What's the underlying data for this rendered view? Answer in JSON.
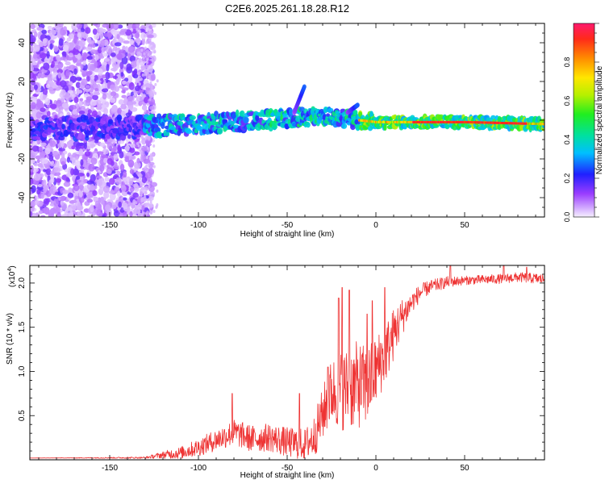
{
  "title": "C2E6.2025.261.18.28.R12",
  "chart_data": [
    {
      "type": "heatmap",
      "xlabel": "Height of straight line (km)",
      "ylabel": "Frequency (Hz)",
      "xlim": [
        -195,
        95
      ],
      "ylim": [
        -50,
        50
      ],
      "xticks": [
        -150,
        -100,
        -50,
        0,
        50
      ],
      "yticks": [
        -40,
        -20,
        0,
        20,
        40
      ],
      "ridge": [
        [
          -195,
          -4
        ],
        [
          -150,
          -4
        ],
        [
          -100,
          -2
        ],
        [
          -50,
          1
        ],
        [
          -30,
          2
        ],
        [
          -10,
          0
        ],
        [
          0,
          -1
        ],
        [
          50,
          -1
        ],
        [
          95,
          -2
        ]
      ],
      "branches": [
        [
          -40,
          18
        ],
        [
          -10,
          8
        ]
      ],
      "colorbar": {
        "label": "Normalized spectral amplitude",
        "range": [
          0,
          1
        ],
        "ticks": [
          "0.0",
          "0.2",
          "0.4",
          "0.6",
          "0.8"
        ],
        "tick_values": [
          0.0,
          0.2,
          0.4,
          0.6,
          0.8
        ]
      }
    },
    {
      "type": "line",
      "xlabel": "Height of straight line (km)",
      "ylabel": "SNR (10 * v/v)",
      "scale_label": "(x10",
      "scale_exp": "4",
      "scale_close": ")",
      "xlim": [
        -195,
        95
      ],
      "ylim": [
        0,
        2.2
      ],
      "xticks": [
        -150,
        -100,
        -50,
        0,
        50
      ],
      "yticks": [
        "0.5",
        "1.0",
        "1.5",
        "2.0"
      ],
      "ytick_values": [
        0.5,
        1.0,
        1.5,
        2.0
      ],
      "series": [
        {
          "name": "SNR",
          "color": "#ee3333",
          "envelope": [
            [
              -195,
              0.02
            ],
            [
              -130,
              0.03
            ],
            [
              -120,
              0.08
            ],
            [
              -110,
              0.12
            ],
            [
              -100,
              0.2
            ],
            [
              -90,
              0.3
            ],
            [
              -80,
              0.4
            ],
            [
              -70,
              0.33
            ],
            [
              -60,
              0.35
            ],
            [
              -50,
              0.3
            ],
            [
              -40,
              0.28
            ],
            [
              -35,
              0.4
            ],
            [
              -30,
              0.7
            ],
            [
              -25,
              1.0
            ],
            [
              -20,
              1.05
            ],
            [
              -15,
              1.1
            ],
            [
              -10,
              1.15
            ],
            [
              -5,
              1.1
            ],
            [
              0,
              1.25
            ],
            [
              5,
              1.4
            ],
            [
              10,
              1.6
            ],
            [
              15,
              1.75
            ],
            [
              20,
              1.85
            ],
            [
              25,
              1.95
            ],
            [
              30,
              2.0
            ],
            [
              40,
              2.05
            ],
            [
              50,
              2.06
            ],
            [
              60,
              2.07
            ],
            [
              70,
              2.08
            ],
            [
              80,
              2.1
            ],
            [
              95,
              2.08
            ]
          ],
          "noise": [
            [
              -195,
              0.0
            ],
            [
              -130,
              0.01
            ],
            [
              -120,
              0.04
            ],
            [
              -100,
              0.1
            ],
            [
              -80,
              0.15
            ],
            [
              -60,
              0.16
            ],
            [
              -40,
              0.18
            ],
            [
              -30,
              0.3
            ],
            [
              -20,
              0.45
            ],
            [
              -10,
              0.5
            ],
            [
              0,
              0.4
            ],
            [
              10,
              0.3
            ],
            [
              20,
              0.12
            ],
            [
              30,
              0.08
            ],
            [
              50,
              0.05
            ],
            [
              95,
              0.06
            ]
          ],
          "spikes": [
            [
              -81,
              0.75
            ],
            [
              -43,
              0.75
            ],
            [
              -27,
              1.05
            ],
            [
              -21,
              1.83
            ],
            [
              -19,
              1.95
            ],
            [
              -15,
              1.92
            ],
            [
              -5,
              1.65
            ],
            [
              -2,
              1.8
            ],
            [
              5,
              1.95
            ],
            [
              12,
              1.55
            ],
            [
              42,
              2.2
            ],
            [
              72,
              2.2
            ],
            [
              85,
              2.18
            ]
          ]
        }
      ]
    }
  ]
}
